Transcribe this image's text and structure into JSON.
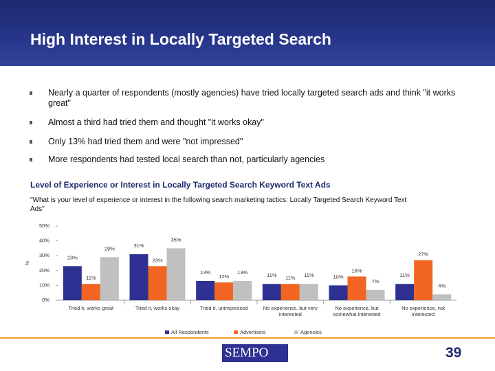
{
  "header": {
    "title": "High Interest in Locally Targeted Search"
  },
  "bullets": [
    "Nearly a quarter of respondents (mostly agencies) have tried locally targeted search ads and think \"it works great\"",
    "Almost a third had tried them and thought \"it works okay\"",
    "Only 13% had tried them and were \"not impressed\"",
    "More respondents had tested local search than not, particularly agencies"
  ],
  "chart_data": {
    "type": "bar",
    "title": "Level of Experience or Interest in Locally Targeted Search Keyword Text Ads",
    "subtitle": "\"What is your level of experience or interest in the following search marketing tactics:  Locally Targeted Search Keyword Text Ads\"",
    "y_label": "%",
    "categories": [
      "Tried it, works great",
      "Tried it, works okay",
      "Tried it, unimpressed",
      "No experience, but very interested",
      "No experience, but somewhat interested",
      "No experience, not interested"
    ],
    "series": [
      {
        "name": "All Respondents",
        "color": "#2e3192",
        "values": [
          23,
          31,
          13,
          11,
          10,
          11
        ],
        "value_labels": [
          "23%",
          "31%",
          "13%",
          "11%",
          "10%",
          "11%"
        ]
      },
      {
        "name": "Advertisers",
        "color": "#f26522",
        "values": [
          11,
          23,
          12,
          11,
          16,
          27
        ],
        "value_labels": [
          "11%",
          "23%",
          "12%",
          "11%",
          "16%",
          "27%"
        ]
      },
      {
        "name": "Agencies",
        "color": "#c0c0c0",
        "values": [
          29,
          35,
          13,
          11,
          7,
          4
        ],
        "value_labels": [
          "29%",
          "35%",
          "13%",
          "11%",
          "7%",
          "4%"
        ]
      }
    ],
    "ylim": [
      0,
      50
    ],
    "yticks": [
      {
        "value": 0,
        "label": "0%"
      },
      {
        "value": 10,
        "label": "10%"
      },
      {
        "value": 20,
        "label": "20%"
      },
      {
        "value": 30,
        "label": "30%"
      },
      {
        "value": 40,
        "label": "40%"
      },
      {
        "value": 50,
        "label": "50%"
      }
    ],
    "grid": false
  },
  "footer": {
    "logo": "SEMPO",
    "page": "39"
  }
}
